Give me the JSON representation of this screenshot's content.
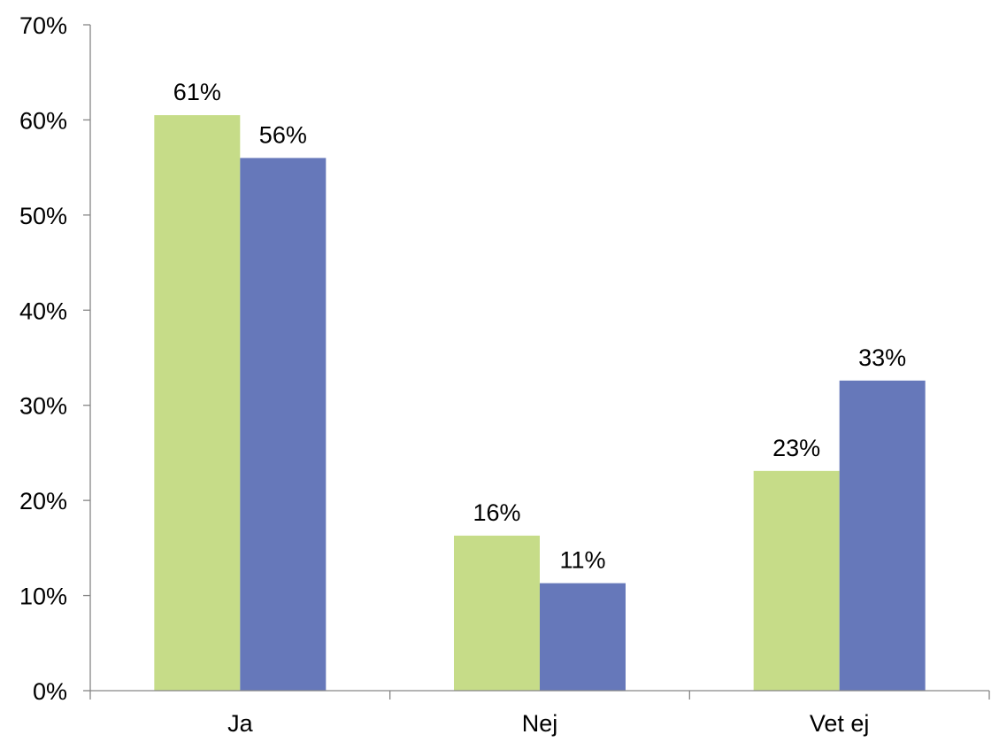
{
  "chart_data": {
    "type": "bar",
    "title": "",
    "xlabel": "",
    "ylabel": "",
    "categories": [
      "Ja",
      "Nej",
      "Vet ej"
    ],
    "series": [
      {
        "color": "#c6dc88",
        "values": [
          60.5,
          16.3,
          23.1
        ],
        "labels": [
          "61%",
          "16%",
          "23%"
        ]
      },
      {
        "color": "#6678ba",
        "values": [
          56.0,
          11.3,
          32.6
        ],
        "labels": [
          "56%",
          "11%",
          "33%"
        ]
      }
    ],
    "ylim": [
      0,
      70
    ],
    "yticks": [
      0,
      10,
      20,
      30,
      40,
      50,
      60,
      70
    ],
    "ytick_labels": [
      "0%",
      "10%",
      "20%",
      "30%",
      "40%",
      "50%",
      "60%",
      "70%"
    ],
    "grid": false,
    "legend": "none"
  }
}
